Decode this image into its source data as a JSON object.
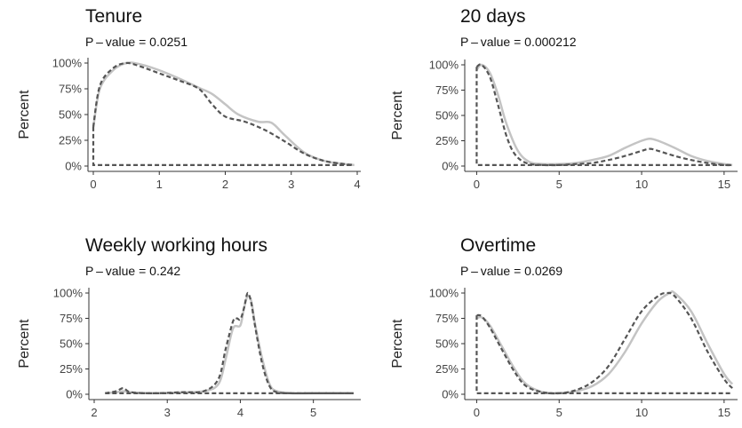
{
  "chart_data": [
    {
      "type": "line",
      "title": "Tenure",
      "subtitle": "P – value = 0.0251",
      "ylabel": "Percent",
      "xlabel": "",
      "xlim": [
        0,
        4
      ],
      "ylim": [
        0,
        100
      ],
      "xticks": [
        "0",
        "1",
        "2",
        "3",
        "4"
      ],
      "xtick_values": [
        0,
        1,
        2,
        3,
        4
      ],
      "yticks": [
        "0%",
        "25%",
        "50%",
        "75%",
        "100%"
      ],
      "ytick_values": [
        0,
        25,
        50,
        75,
        100
      ],
      "series": [
        {
          "style": "solid",
          "color": "#c4c4c4",
          "x": [
            0,
            0.1,
            0.3,
            0.5,
            0.7,
            1.0,
            1.3,
            1.6,
            1.8,
            2.0,
            2.2,
            2.5,
            2.7,
            2.9,
            3.2,
            3.5,
            3.8,
            3.95
          ],
          "y": [
            38,
            75,
            93,
            100,
            99,
            93,
            85,
            76,
            70,
            60,
            50,
            43,
            42,
            30,
            13,
            5,
            2,
            1
          ]
        },
        {
          "style": "dashed",
          "color": "#555555",
          "x": [
            0,
            0.1,
            0.3,
            0.5,
            0.7,
            1.0,
            1.3,
            1.6,
            1.8,
            2.0,
            2.3,
            2.6,
            2.9,
            3.2,
            3.5,
            3.8,
            3.95
          ],
          "y": [
            38,
            78,
            95,
            100,
            97,
            90,
            83,
            75,
            60,
            48,
            43,
            35,
            24,
            12,
            5,
            2,
            1
          ]
        },
        {
          "style": "dashed",
          "color": "#555555",
          "x": [
            0,
            0,
            3.95
          ],
          "y": [
            38,
            1,
            1
          ]
        }
      ]
    },
    {
      "type": "line",
      "title": "20 days",
      "subtitle": "P – value = 0.000212",
      "ylabel": "Percent",
      "xlabel": "",
      "xlim": [
        -0.4,
        15.6
      ],
      "ylim": [
        0,
        100
      ],
      "xticks": [
        "0",
        "5",
        "10",
        "15"
      ],
      "xtick_values": [
        0,
        5,
        10,
        15
      ],
      "yticks": [
        "0%",
        "25%",
        "50%",
        "75%",
        "100%"
      ],
      "ytick_values": [
        0,
        25,
        50,
        75,
        100
      ],
      "series": [
        {
          "style": "solid",
          "color": "#c4c4c4",
          "x": [
            0,
            0.3,
            0.8,
            1.3,
            1.8,
            2.5,
            3.2,
            4,
            5,
            6,
            7,
            8,
            9,
            10,
            10.5,
            11,
            12,
            13,
            14,
            15,
            15.5
          ],
          "y": [
            95,
            100,
            92,
            70,
            42,
            15,
            4,
            2,
            2,
            3,
            6,
            10,
            18,
            25,
            27,
            25,
            18,
            10,
            5,
            2,
            1
          ]
        },
        {
          "style": "dashed",
          "color": "#555555",
          "x": [
            0,
            0.3,
            0.8,
            1.3,
            1.8,
            2.3,
            3,
            4,
            5,
            6,
            7,
            8,
            9,
            10,
            10.5,
            11,
            12,
            13,
            14,
            15,
            15.5
          ],
          "y": [
            98,
            100,
            88,
            60,
            30,
            12,
            3,
            1,
            1,
            2,
            3,
            6,
            10,
            15,
            17,
            15,
            10,
            6,
            3,
            1,
            1
          ]
        },
        {
          "style": "dashed",
          "color": "#555555",
          "x": [
            0,
            0,
            15.5
          ],
          "y": [
            98,
            1,
            1
          ]
        }
      ]
    },
    {
      "type": "line",
      "title": "Weekly working hours",
      "subtitle": "P – value = 0.242",
      "ylabel": "Percent",
      "xlabel": "",
      "xlim": [
        2,
        5.6
      ],
      "ylim": [
        0,
        100
      ],
      "xticks": [
        "2",
        "3",
        "4",
        "5"
      ],
      "xtick_values": [
        2,
        3,
        4,
        5
      ],
      "yticks": [
        "0%",
        "25%",
        "50%",
        "75%",
        "100%"
      ],
      "ytick_values": [
        0,
        25,
        50,
        75,
        100
      ],
      "series": [
        {
          "style": "solid",
          "color": "#c4c4c4",
          "x": [
            2.15,
            2.3,
            2.4,
            2.5,
            2.8,
            3.2,
            3.5,
            3.7,
            3.8,
            3.9,
            4.0,
            4.05,
            4.1,
            4.15,
            4.2,
            4.3,
            4.4,
            4.5,
            4.7,
            5.0,
            5.55
          ],
          "y": [
            1,
            2,
            3,
            2,
            1,
            2,
            3,
            10,
            35,
            65,
            68,
            85,
            97,
            92,
            70,
            35,
            10,
            3,
            1,
            1,
            1
          ]
        },
        {
          "style": "dashed",
          "color": "#555555",
          "x": [
            2.15,
            2.3,
            2.4,
            2.5,
            2.8,
            3.2,
            3.5,
            3.7,
            3.8,
            3.9,
            3.95,
            4.0,
            4.05,
            4.1,
            4.15,
            4.2,
            4.3,
            4.4,
            4.5,
            4.7,
            5.0,
            5.55
          ],
          "y": [
            1,
            3,
            6,
            2,
            1,
            2,
            3,
            15,
            45,
            72,
            75,
            74,
            85,
            100,
            90,
            68,
            30,
            8,
            2,
            1,
            1,
            1
          ]
        },
        {
          "style": "dashed",
          "color": "#555555",
          "x": [
            2.15,
            5.55
          ],
          "y": [
            1,
            1
          ]
        }
      ]
    },
    {
      "type": "line",
      "title": "Overtime",
      "subtitle": "P – value = 0.0269",
      "ylabel": "Percent",
      "xlabel": "",
      "xlim": [
        -0.4,
        15.6
      ],
      "ylim": [
        0,
        100
      ],
      "xticks": [
        "0",
        "5",
        "10",
        "15"
      ],
      "xtick_values": [
        0,
        5,
        10,
        15
      ],
      "yticks": [
        "0%",
        "25%",
        "50%",
        "75%",
        "100%"
      ],
      "ytick_values": [
        0,
        25,
        50,
        75,
        100
      ],
      "series": [
        {
          "style": "solid",
          "color": "#c4c4c4",
          "x": [
            0,
            0.3,
            0.8,
            1.5,
            2.3,
            3,
            4,
            5,
            6,
            7,
            8,
            9,
            10,
            11,
            11.7,
            12,
            13,
            14,
            15,
            15.5
          ],
          "y": [
            75,
            76,
            68,
            48,
            25,
            10,
            2,
            1,
            3,
            8,
            20,
            42,
            70,
            92,
            100,
            100,
            82,
            50,
            20,
            10
          ]
        },
        {
          "style": "dashed",
          "color": "#555555",
          "x": [
            0,
            0.3,
            0.8,
            1.5,
            2.3,
            3,
            4,
            5,
            6,
            7,
            8,
            9,
            10,
            11,
            11.5,
            12,
            13,
            14,
            15,
            15.5
          ],
          "y": [
            78,
            77,
            66,
            45,
            22,
            8,
            2,
            1,
            4,
            12,
            28,
            55,
            82,
            97,
            100,
            97,
            75,
            42,
            15,
            6
          ]
        },
        {
          "style": "dashed",
          "color": "#555555",
          "x": [
            0,
            0,
            15.5
          ],
          "y": [
            78,
            1,
            1
          ]
        }
      ]
    }
  ]
}
